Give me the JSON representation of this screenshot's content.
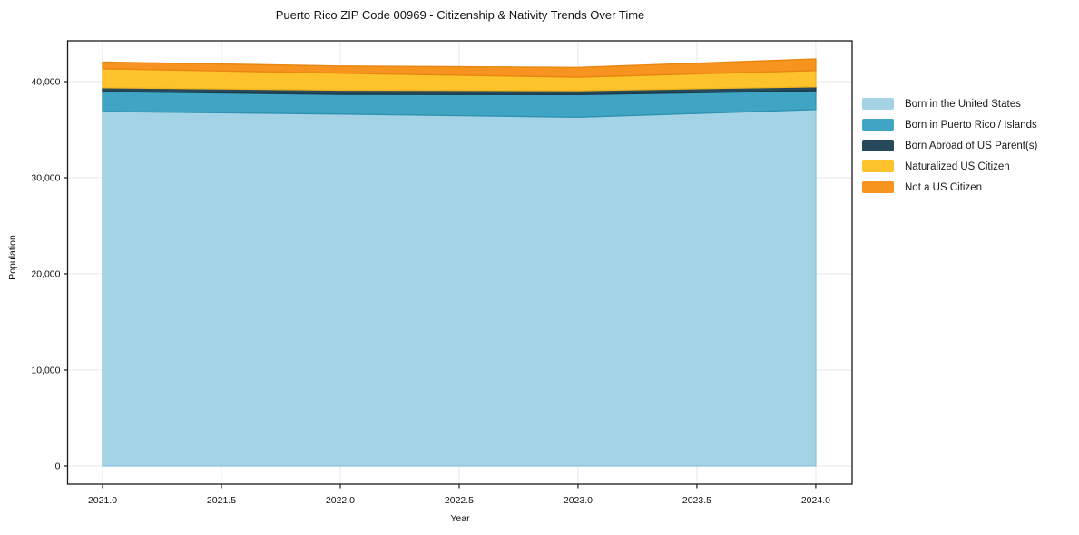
{
  "title": "Puerto Rico ZIP Code 00969 - Citizenship & Nativity Trends Over Time",
  "chart_data": {
    "type": "area",
    "stacked": true,
    "title": "Puerto Rico ZIP Code 00969 - Citizenship & Nativity Trends Over Time",
    "xlabel": "Year",
    "ylabel": "Population",
    "x": [
      2021,
      2022,
      2023,
      2024
    ],
    "series": [
      {
        "name": "Born in the United States",
        "color": "#a5d3e6",
        "edge_color": "#8fc3da",
        "values": [
          36900,
          36630,
          36290,
          37100
        ]
      },
      {
        "name": "Born in Puerto Rico / Islands",
        "color": "#40a5c4",
        "edge_color": "#2e92b1",
        "values": [
          2080,
          2050,
          2360,
          1960
        ]
      },
      {
        "name": "Born Abroad of US Parent(s)",
        "color": "#26495c",
        "edge_color": "#1c3947",
        "values": [
          380,
          440,
          410,
          400
        ]
      },
      {
        "name": "Naturalized US Citizen",
        "color": "#fcc32d",
        "edge_color": "#f0b41e",
        "values": [
          1980,
          1760,
          1410,
          1700
        ]
      },
      {
        "name": "Not a US Citizen",
        "color": "#f7941f",
        "edge_color": "#e88611",
        "values": [
          700,
          750,
          1010,
          1200
        ]
      }
    ],
    "x_ticks": {
      "values": [
        2021,
        2021.5,
        2022,
        2022.5,
        2023,
        2023.5,
        2024
      ],
      "labels": [
        "2021.0",
        "2021.5",
        "2022.0",
        "2022.5",
        "2023.0",
        "2023.5",
        "2024.0"
      ]
    },
    "y_ticks": {
      "values": [
        0,
        10000,
        20000,
        30000,
        40000
      ],
      "labels": [
        "0",
        "10,000",
        "20,000",
        "30,000",
        "40,000"
      ]
    },
    "xlim": [
      2020.853,
      2024.153
    ],
    "ylim": [
      -1890,
      44250
    ],
    "grid": true,
    "grid_color": "#e8e8e8",
    "frame_color": "#1a1a1a",
    "legend_position": "right-outside",
    "background": "#ffffff"
  }
}
